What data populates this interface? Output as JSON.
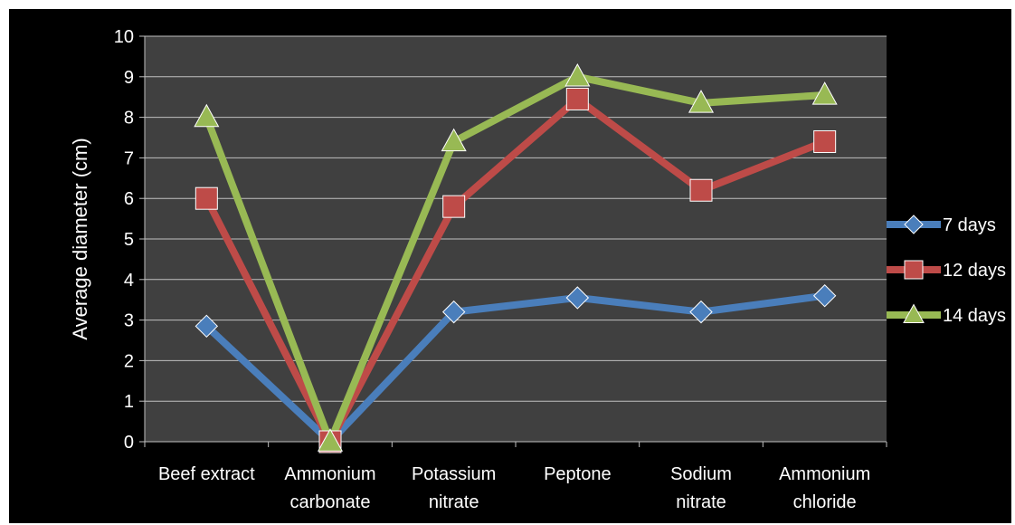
{
  "chart_data": {
    "type": "line",
    "title": "",
    "xlabel": "",
    "ylabel": "Average diameter (cm)",
    "ylim": [
      0,
      10
    ],
    "yticks": [
      "0",
      "1",
      "2",
      "3",
      "4",
      "5",
      "6",
      "7",
      "8",
      "9",
      "10"
    ],
    "grid": true,
    "legend_position": "right",
    "categories": [
      [
        "Beef extract"
      ],
      [
        "Ammonium",
        "carbonate"
      ],
      [
        "Potassium",
        "nitrate"
      ],
      [
        "Peptone"
      ],
      [
        "Sodium",
        "nitrate"
      ],
      [
        "Ammonium",
        "chloride"
      ]
    ],
    "series": [
      {
        "name": "7 days",
        "color": "#4a7ebb",
        "marker": "diamond",
        "values": [
          2.85,
          0,
          3.2,
          3.55,
          3.2,
          3.6
        ]
      },
      {
        "name": "12 days",
        "color": "#be4b48",
        "marker": "square",
        "values": [
          6.0,
          0,
          5.8,
          8.45,
          6.2,
          7.4
        ]
      },
      {
        "name": "14 days",
        "color": "#98b954",
        "marker": "triangle",
        "values": [
          8.0,
          0,
          7.4,
          9.0,
          8.35,
          8.55
        ]
      }
    ],
    "colors": {
      "background": "#000000",
      "plot_area": "#404040",
      "grid": "#bfbfbf",
      "text": "#ffffff"
    }
  }
}
